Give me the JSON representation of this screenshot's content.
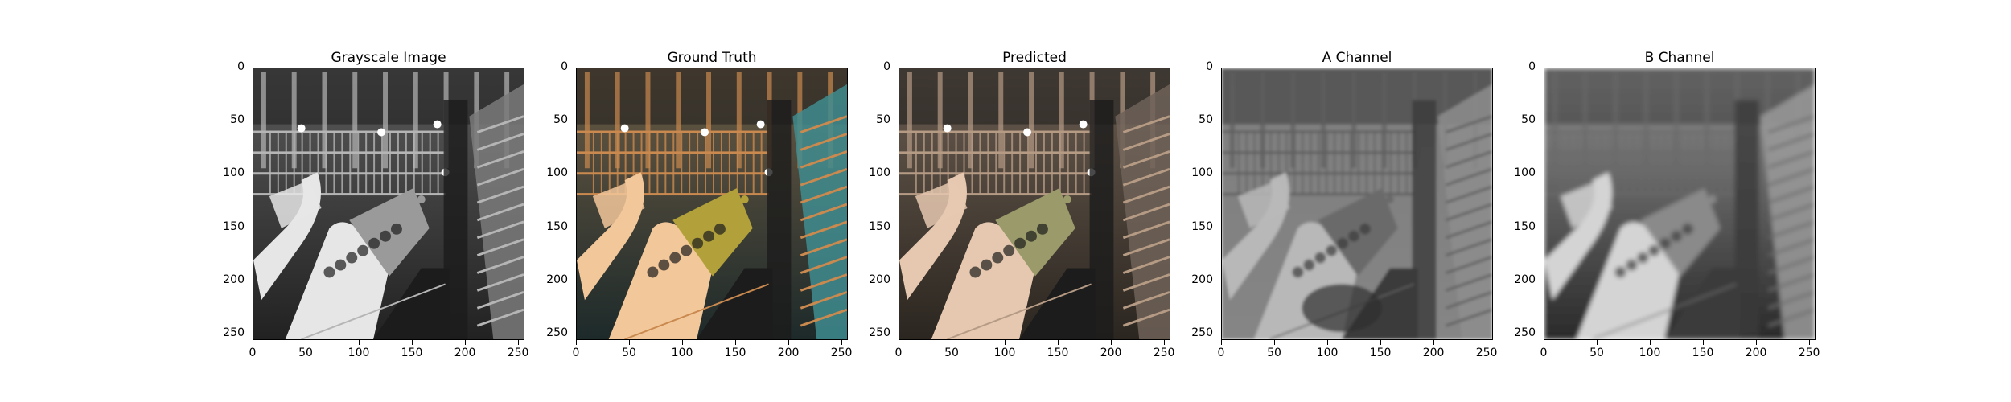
{
  "figure": {
    "panels": [
      {
        "title": "Grayscale Image",
        "style": "gray"
      },
      {
        "title": "Ground Truth",
        "style": "color"
      },
      {
        "title": "Predicted",
        "style": "predicted"
      },
      {
        "title": "A Channel",
        "style": "blurgray"
      },
      {
        "title": "B Channel",
        "style": "blurgray2"
      }
    ],
    "x_ticks": [
      "0",
      "50",
      "100",
      "150",
      "200",
      "250"
    ],
    "y_ticks": [
      "0",
      "50",
      "100",
      "150",
      "200",
      "250"
    ],
    "axis_max": 256
  },
  "colors": {
    "gray_dark": "#1c1c1c",
    "gray_mid": "#8a8a8a",
    "gray_light": "#e6e6e6",
    "warm_light": "#f2c79a",
    "warm_mid": "#c9894f",
    "teal": "#3f8c8f",
    "green_yellow": "#b2a13a"
  }
}
